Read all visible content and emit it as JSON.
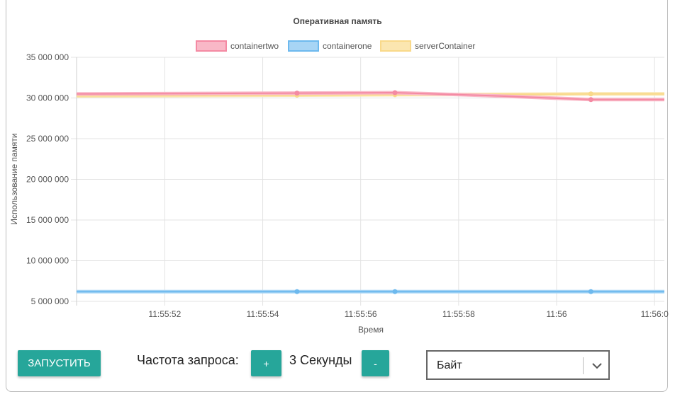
{
  "chart_data": {
    "type": "line",
    "title": "Оперативная память",
    "xlabel": "Время",
    "ylabel": "Использование памяти",
    "ylim": [
      5000000,
      35000000
    ],
    "y_ticks": [
      "35 000 000",
      "30 000 000",
      "25 000 000",
      "20 000 000",
      "15 000 000",
      "10 000 000",
      "5 000 000"
    ],
    "x_ticks": [
      "11:55:52",
      "11:55:54",
      "11:55:56",
      "11:55:58",
      "11:56",
      "11:56:0"
    ],
    "grid": true,
    "legend_position": "top",
    "series": [
      {
        "name": "containertwo",
        "color": "#f48aa3",
        "fill": "#f9b8c7",
        "points": [
          [
            "11:55:50.2",
            30500000
          ],
          [
            "11:55:54.7",
            30600000
          ],
          [
            "11:55:56.7",
            30650000
          ],
          [
            "11:55:58.6",
            30300000
          ],
          [
            "11:56:00.7",
            29800000
          ],
          [
            "11:56:02.2",
            29800000
          ]
        ]
      },
      {
        "name": "containerone",
        "color": "#6db9ee",
        "fill": "#a7d5f5",
        "points": [
          [
            "11:55:50.2",
            6200000
          ],
          [
            "11:55:54.7",
            6200000
          ],
          [
            "11:55:56.7",
            6200000
          ],
          [
            "11:56:00.7",
            6200000
          ],
          [
            "11:56:02.2",
            6200000
          ]
        ]
      },
      {
        "name": "serverContainer",
        "color": "#f9d98a",
        "fill": "#fbe6b0",
        "points": [
          [
            "11:55:50.2",
            30250000
          ],
          [
            "11:55:54.7",
            30350000
          ],
          [
            "11:55:56.7",
            30400000
          ],
          [
            "11:56:00.7",
            30500000
          ],
          [
            "11:56:02.2",
            30500000
          ]
        ]
      }
    ],
    "marker_times": [
      "11:55:54.7",
      "11:55:56.7",
      "11:56:00.7"
    ]
  },
  "controls": {
    "start_label": "ЗАПУСТИТЬ",
    "frequency_label": "Частота запроса:",
    "plus_label": "+",
    "interval_value": "3 Секунды",
    "minus_label": "-",
    "unit_select_value": "Байт"
  },
  "icons": {
    "select_arrow": "chevron-down-icon"
  }
}
